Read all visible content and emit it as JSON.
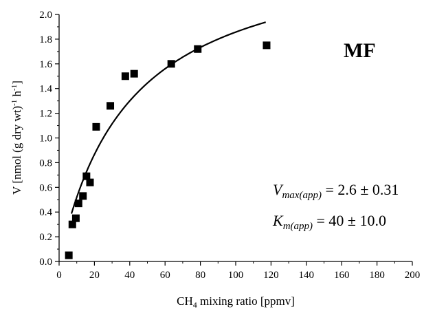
{
  "chart_data": {
    "type": "scatter",
    "panel_label": "MF",
    "xlabel_main": "CH",
    "xlabel_sub": "4",
    "xlabel_rest": " mixing ratio [ppmv]",
    "ylabel_pre": "V [nmol (g dry wt)",
    "ylabel_sup1": "-1",
    "ylabel_mid": " h",
    "ylabel_sup2": "-1",
    "ylabel_post": "]",
    "xlim": [
      0,
      200
    ],
    "ylim": [
      0,
      2.0
    ],
    "xticks": [
      "0",
      "20",
      "40",
      "60",
      "80",
      "100",
      "120",
      "140",
      "160",
      "180",
      "200"
    ],
    "yticks": [
      "0.0",
      "0.2",
      "0.4",
      "0.6",
      "0.8",
      "1.0",
      "1.2",
      "1.4",
      "1.6",
      "1.8",
      "2.0"
    ],
    "grid": false,
    "points": [
      {
        "x": 5.5,
        "y": 0.05
      },
      {
        "x": 7.5,
        "y": 0.3
      },
      {
        "x": 9.5,
        "y": 0.35
      },
      {
        "x": 11.0,
        "y": 0.47
      },
      {
        "x": 13.5,
        "y": 0.53
      },
      {
        "x": 15.5,
        "y": 0.69
      },
      {
        "x": 17.5,
        "y": 0.64
      },
      {
        "x": 21.0,
        "y": 1.09
      },
      {
        "x": 29.0,
        "y": 1.26
      },
      {
        "x": 37.5,
        "y": 1.5
      },
      {
        "x": 42.5,
        "y": 1.52
      },
      {
        "x": 63.5,
        "y": 1.6
      },
      {
        "x": 78.5,
        "y": 1.72
      },
      {
        "x": 117.5,
        "y": 1.75
      }
    ],
    "fit": {
      "model": "michaelis-menten",
      "vmax": 2.6,
      "km": 40,
      "x_range": [
        7,
        117
      ]
    },
    "annotations": {
      "vmax_sym": "V",
      "vmax_sub": "max(app)",
      "vmax_val": " = 2.6 ± 0.31",
      "km_sym": "K",
      "km_sub": "m(app)",
      "km_val": " = 40 ± 10.0"
    }
  }
}
